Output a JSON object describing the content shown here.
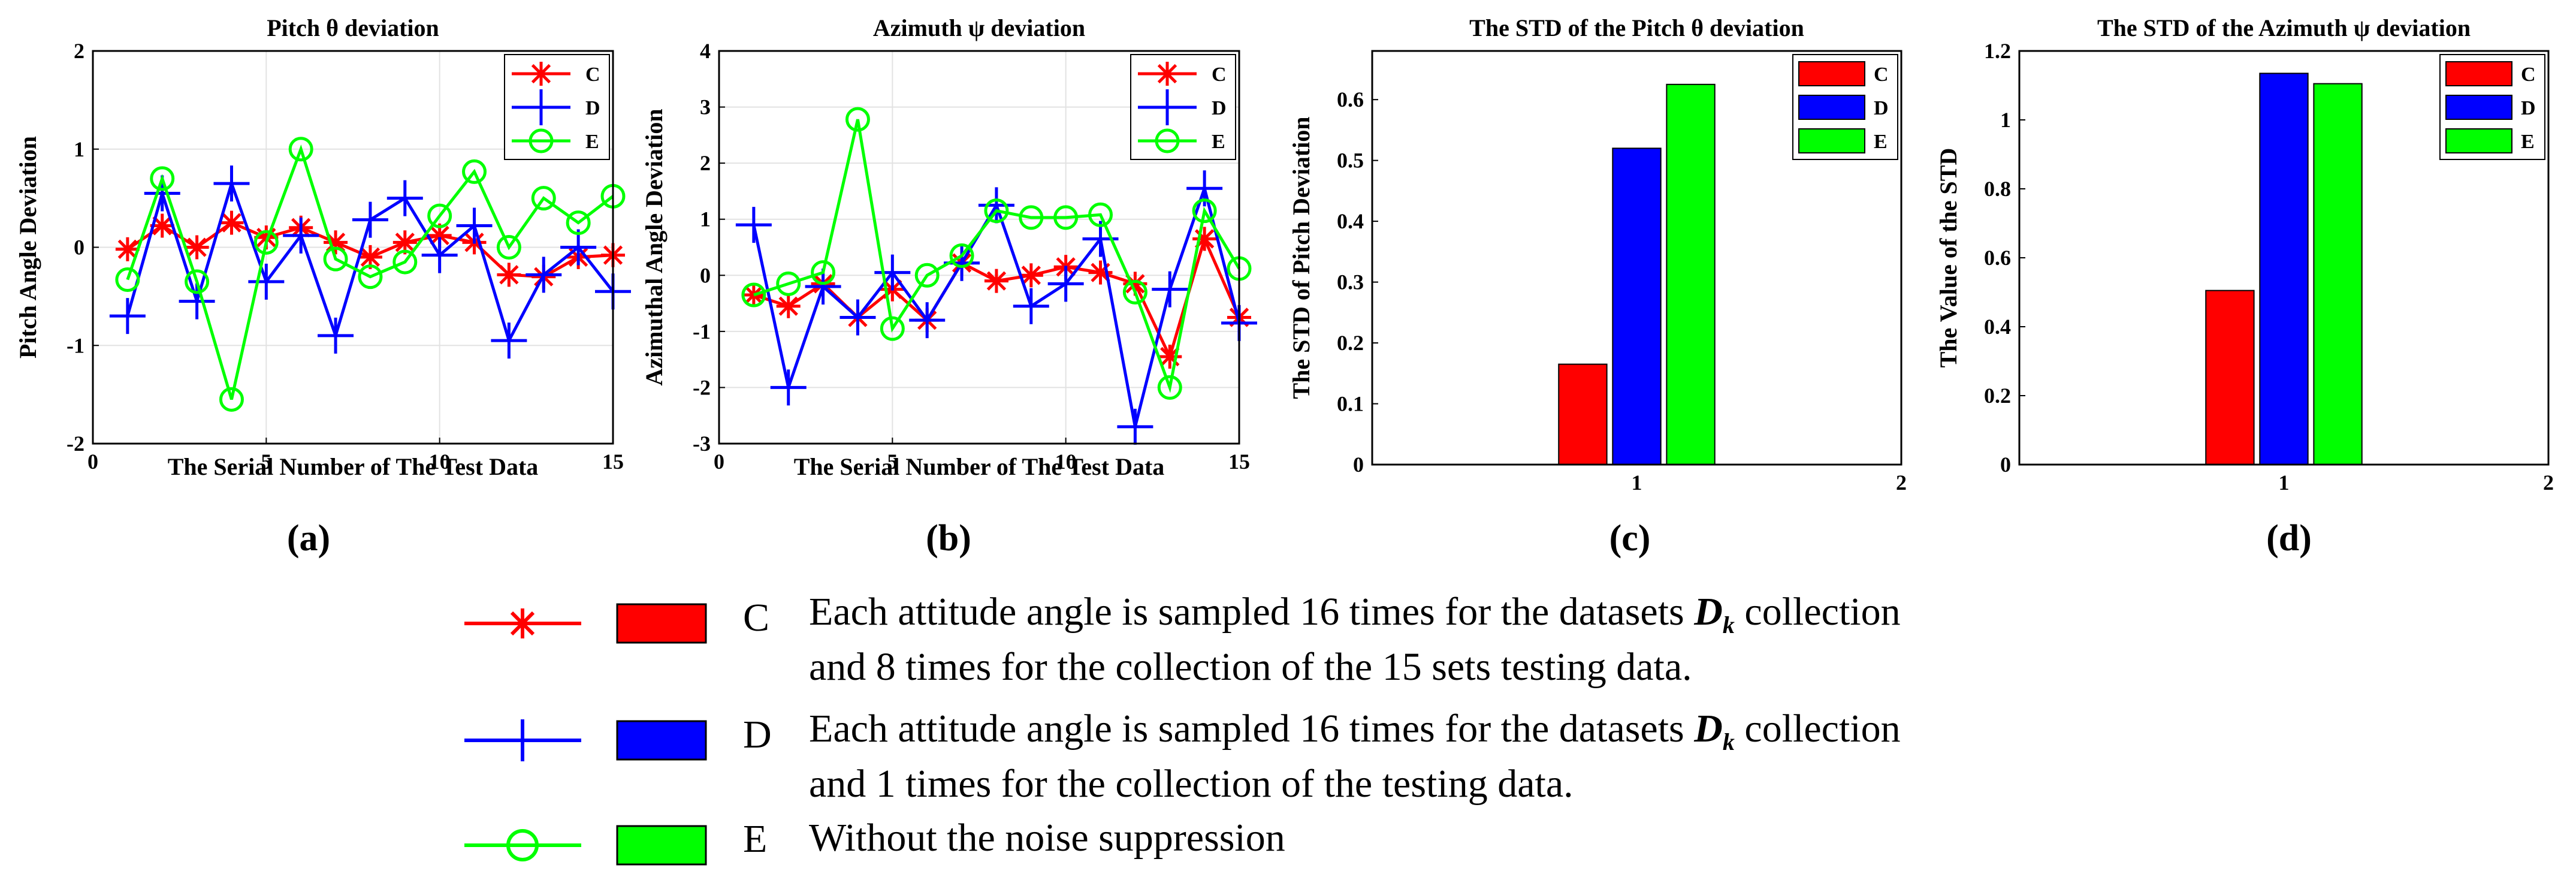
{
  "chart_data": [
    {
      "type": "line",
      "panel_label": "(a)",
      "title": "Pitch  θ  deviation",
      "xlabel": "The Serial Number of The Test  Data",
      "ylabel": "Pitch Angle Deviation",
      "xlim": [
        0,
        15
      ],
      "ylim": [
        -2,
        2
      ],
      "xticks": [
        0,
        5,
        10,
        15
      ],
      "yticks": [
        -2,
        -1,
        0,
        1,
        2
      ],
      "grid": true,
      "legend": "top-right",
      "x": [
        1,
        2,
        3,
        4,
        5,
        6,
        7,
        8,
        9,
        10,
        11,
        12,
        13,
        14,
        15
      ],
      "series": [
        {
          "name": "C",
          "color": "#ff0000",
          "marker": "asterisk",
          "values": [
            -0.02,
            0.22,
            0.0,
            0.25,
            0.1,
            0.2,
            0.05,
            -0.1,
            0.05,
            0.12,
            0.05,
            -0.28,
            -0.3,
            -0.1,
            -0.08
          ]
        },
        {
          "name": "D",
          "color": "#0000ff",
          "marker": "plus",
          "values": [
            -0.7,
            0.55,
            -0.55,
            0.65,
            -0.35,
            0.12,
            -0.9,
            0.28,
            0.5,
            -0.08,
            0.22,
            -0.95,
            -0.28,
            0.0,
            -0.45
          ]
        },
        {
          "name": "E",
          "color": "#00ff00",
          "marker": "circle",
          "values": [
            -0.33,
            0.7,
            -0.35,
            -1.55,
            0.05,
            1.0,
            -0.12,
            -0.3,
            -0.15,
            0.32,
            0.77,
            0.0,
            0.5,
            0.25,
            0.52
          ]
        }
      ]
    },
    {
      "type": "line",
      "panel_label": "(b)",
      "title": "Azimuth  ψ  deviation",
      "xlabel": "The Serial Number of The Test  Data",
      "ylabel": "Azimuthal Angle Deviation",
      "xlim": [
        0,
        15
      ],
      "ylim": [
        -3,
        4
      ],
      "xticks": [
        0,
        5,
        10,
        15
      ],
      "yticks": [
        -3,
        -2,
        -1,
        0,
        1,
        2,
        3,
        4
      ],
      "grid": true,
      "legend": "top-right",
      "x": [
        1,
        2,
        3,
        4,
        5,
        6,
        7,
        8,
        9,
        10,
        11,
        12,
        13,
        14,
        15
      ],
      "series": [
        {
          "name": "C",
          "color": "#ff0000",
          "marker": "asterisk",
          "values": [
            -0.35,
            -0.55,
            -0.15,
            -0.75,
            -0.25,
            -0.8,
            0.22,
            -0.1,
            0.0,
            0.15,
            0.05,
            -0.15,
            -1.45,
            0.65,
            -0.75
          ]
        },
        {
          "name": "D",
          "color": "#0000ff",
          "marker": "plus",
          "values": [
            0.9,
            -2.0,
            -0.2,
            -0.75,
            0.05,
            -0.8,
            0.22,
            1.25,
            -0.55,
            -0.15,
            0.65,
            -2.7,
            -0.25,
            1.55,
            -0.85
          ]
        },
        {
          "name": "E",
          "color": "#00ff00",
          "marker": "circle",
          "values": [
            -0.35,
            -0.15,
            0.05,
            2.78,
            -0.95,
            0.0,
            0.35,
            1.15,
            1.03,
            1.03,
            1.08,
            -0.3,
            -2.0,
            1.15,
            0.12
          ]
        }
      ]
    },
    {
      "type": "bar",
      "panel_label": "(c)",
      "title": "The STD of the Pitch  θ  deviation",
      "xlabel": "",
      "ylabel": "The STD of Pitch Deviation",
      "xlim": [
        0,
        2
      ],
      "ylim": [
        0,
        0.68
      ],
      "xticks": [
        1,
        2
      ],
      "yticks": [
        0,
        0.1,
        0.2,
        0.3,
        0.4,
        0.5,
        0.6
      ],
      "grid": false,
      "legend": "top-right",
      "categories": [
        "1"
      ],
      "series": [
        {
          "name": "C",
          "color": "#ff0000",
          "values": [
            0.165
          ]
        },
        {
          "name": "D",
          "color": "#0000ff",
          "values": [
            0.52
          ]
        },
        {
          "name": "E",
          "color": "#00ff00",
          "values": [
            0.625
          ]
        }
      ]
    },
    {
      "type": "bar",
      "panel_label": "(d)",
      "title": "The STD of  the Azimuth  ψ  deviation",
      "xlabel": "",
      "ylabel": "The Value of the STD",
      "xlim": [
        0,
        2
      ],
      "ylim": [
        0,
        1.2
      ],
      "xticks": [
        1,
        2
      ],
      "yticks": [
        0,
        0.2,
        0.4,
        0.6,
        0.8,
        1,
        1.2
      ],
      "grid": false,
      "legend": "top-right",
      "categories": [
        "1"
      ],
      "series": [
        {
          "name": "C",
          "color": "#ff0000",
          "values": [
            0.505
          ]
        },
        {
          "name": "D",
          "color": "#0000ff",
          "values": [
            1.135
          ]
        },
        {
          "name": "E",
          "color": "#00ff00",
          "values": [
            1.105
          ]
        }
      ]
    }
  ],
  "legend": [
    {
      "name": "C",
      "color": "#ff0000",
      "marker": "asterisk",
      "line1": "Each attitude angle is sampled 16 times for  the datasets ",
      "symbol": "D",
      "sub": "k",
      "line1_end": " collection",
      "line2": "and 8 times for the collection of the 15 sets testing data."
    },
    {
      "name": "D",
      "color": "#0000ff",
      "marker": "plus",
      "line1": "Each attitude angle is sampled 16 times for the datasets ",
      "symbol": "D",
      "sub": "k",
      "line1_end": " collection",
      "line2": "and 1 times for the collection of the testing data."
    },
    {
      "name": "E",
      "color": "#00ff00",
      "marker": "circle",
      "line1": "Without the noise suppression",
      "line2": ""
    }
  ]
}
